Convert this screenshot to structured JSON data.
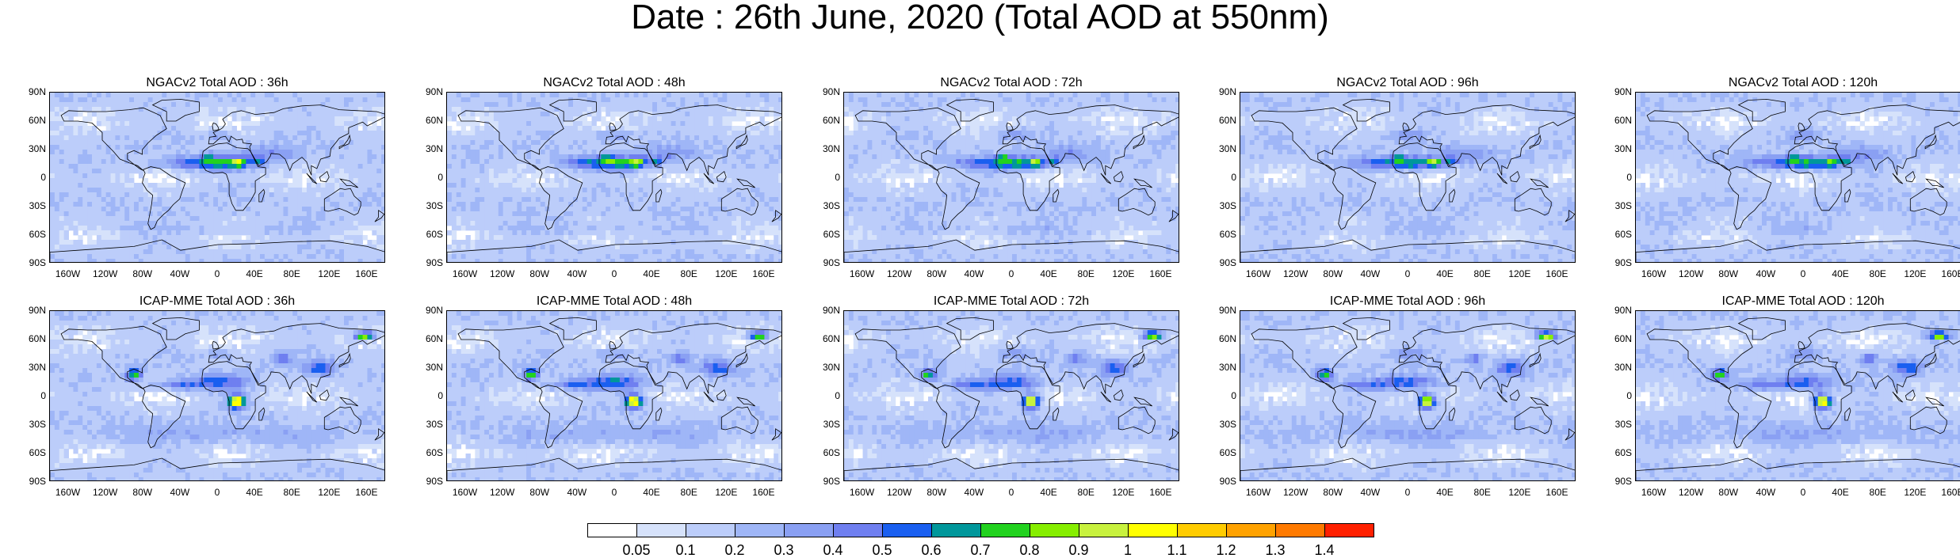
{
  "title": "Date : 26th June, 2020 (Total AOD at 550nm)",
  "panels": [
    {
      "title": "NGACv2 Total AOD : 36h",
      "model": "NGACv2",
      "lead": "36h"
    },
    {
      "title": "NGACv2 Total AOD : 48h",
      "model": "NGACv2",
      "lead": "48h"
    },
    {
      "title": "NGACv2 Total AOD : 72h",
      "model": "NGACv2",
      "lead": "72h"
    },
    {
      "title": "NGACv2 Total AOD : 96h",
      "model": "NGACv2",
      "lead": "96h"
    },
    {
      "title": "NGACv2 Total AOD : 120h",
      "model": "NGACv2",
      "lead": "120h"
    },
    {
      "title": "ICAP-MME Total AOD : 36h",
      "model": "ICAP-MME",
      "lead": "36h"
    },
    {
      "title": "ICAP-MME Total AOD : 48h",
      "model": "ICAP-MME",
      "lead": "48h"
    },
    {
      "title": "ICAP-MME Total AOD : 72h",
      "model": "ICAP-MME",
      "lead": "72h"
    },
    {
      "title": "ICAP-MME Total AOD : 96h",
      "model": "ICAP-MME",
      "lead": "96h"
    },
    {
      "title": "ICAP-MME Total AOD : 120h",
      "model": "ICAP-MME",
      "lead": "120h"
    }
  ],
  "lat_ticks": [
    "90N",
    "60N",
    "30N",
    "0",
    "30S",
    "60S",
    "90S"
  ],
  "lon_ticks": [
    "160W",
    "120W",
    "80W",
    "40W",
    "0",
    "40E",
    "80E",
    "120E",
    "160E"
  ],
  "colorbar": {
    "labels": [
      "0.05",
      "0.1",
      "0.2",
      "0.3",
      "0.4",
      "0.5",
      "0.6",
      "0.7",
      "0.8",
      "0.9",
      "1",
      "1.1",
      "1.2",
      "1.3",
      "1.4"
    ],
    "colors": [
      "#ffffff",
      "#d6e2fb",
      "#bccdfa",
      "#9fb6f7",
      "#8aa0f3",
      "#6f7ff0",
      "#1a5ff0",
      "#00979b",
      "#22d21f",
      "#86ee00",
      "#c8f23e",
      "#ffff00",
      "#ffcc00",
      "#ffa200",
      "#ff7a00",
      "#ff2000"
    ]
  }
}
